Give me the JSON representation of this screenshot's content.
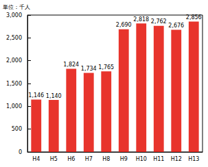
{
  "chart_data": {
    "type": "bar",
    "ylabel": "単位：千人",
    "categories": [
      "H4",
      "H5",
      "H6",
      "H7",
      "H8",
      "H9",
      "H10",
      "H11",
      "H12",
      "H13"
    ],
    "values": [
      1146,
      1140,
      1824,
      1734,
      1765,
      2690,
      2818,
      2762,
      2676,
      2856
    ],
    "value_labels": [
      "1,146",
      "1,140",
      "1,824",
      "1,734",
      "1,765",
      "2,690",
      "2,818",
      "2,762",
      "2,676",
      "2,856"
    ],
    "color": "#e8342c",
    "ylim": [
      0,
      3000
    ],
    "yticks": [
      0,
      500,
      {
        "value": 1000,
        "label": "1,000"
      },
      {
        "value": 1500,
        "label": "1,500"
      },
      {
        "value": 2000,
        "label": "2,000"
      },
      {
        "value": 2500,
        "label": "2,500"
      },
      {
        "value": 3000,
        "label": "3,000"
      }
    ],
    "grid": false,
    "data_labels": true
  }
}
